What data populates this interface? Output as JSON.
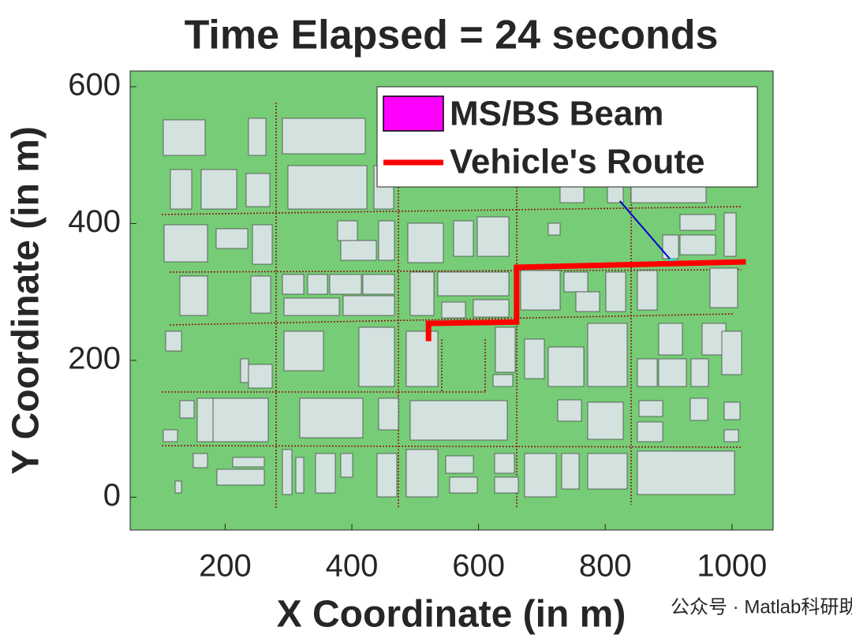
{
  "chart_data": {
    "type": "line",
    "title": "Time Elapsed = 24 seconds",
    "x_label": "X Coordinate (in m)",
    "y_label": "Y Coordinate (in m)",
    "xlim": [
      50,
      1065
    ],
    "ylim": [
      -48,
      623
    ],
    "xticks": [
      200,
      400,
      600,
      800,
      1000
    ],
    "yticks": [
      0,
      200,
      400,
      600
    ],
    "background": "#77cc77",
    "legend_location": "upper right",
    "series": [
      {
        "name": "MS/BS Beam",
        "color": "#ff00ff",
        "line_color": "#0000cc",
        "x": [
          823,
          906
        ],
        "y": [
          433,
          344
        ]
      },
      {
        "name": "Vehicle's Route",
        "color": "#ff0000",
        "x": [
          521,
          521,
          660,
          660,
          1022
        ],
        "y": [
          228,
          254,
          256,
          336,
          344
        ]
      }
    ]
  },
  "watermark": "公众号 · Matlab科研助手"
}
